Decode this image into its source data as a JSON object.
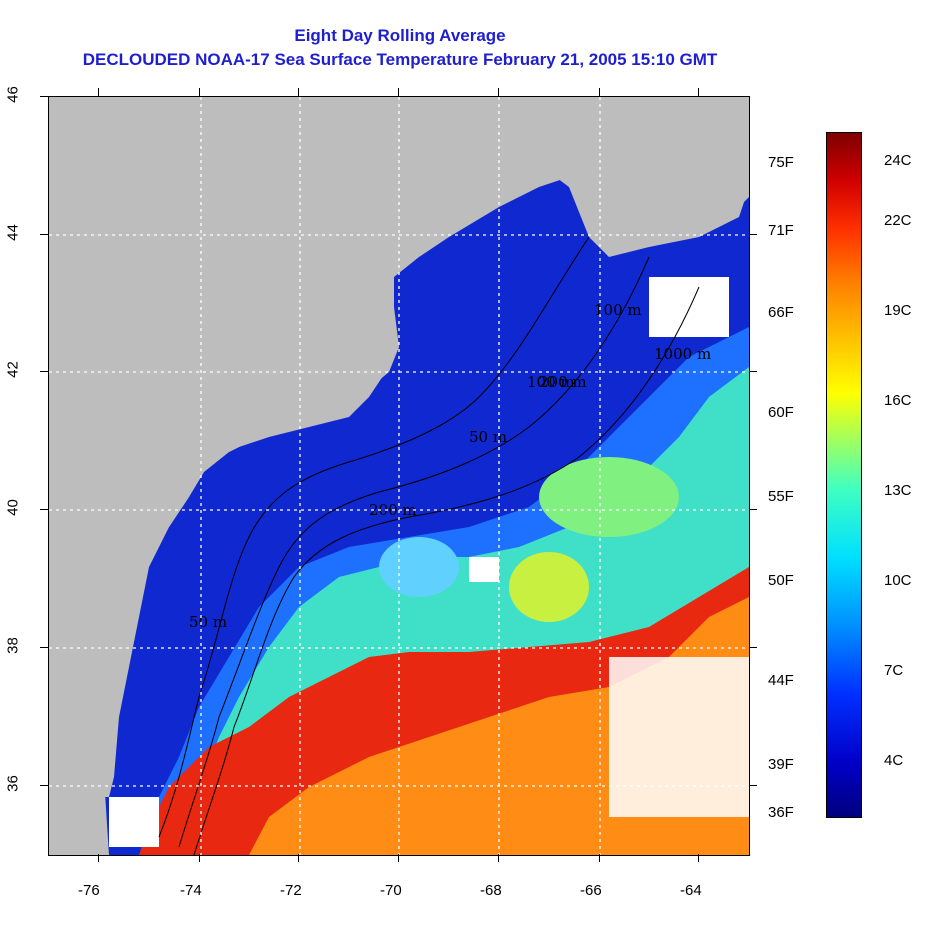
{
  "title_line1": "Eight Day Rolling Average",
  "title_line2": "DECLOUDED NOAA-17 Sea Surface Temperature February 21, 2005 15:10 GMT",
  "x_axis": {
    "ticks": [
      "-76",
      "-74",
      "-72",
      "-70",
      "-68",
      "-66",
      "-64"
    ]
  },
  "y_axis": {
    "ticks": [
      "46",
      "44",
      "42",
      "40",
      "38",
      "36"
    ]
  },
  "contour_labels": [
    "50 m",
    "100 m",
    "200 m",
    "200 m",
    "1000 m",
    "100 m",
    "50 m"
  ],
  "colorbar": {
    "celsius_labels": [
      "24C",
      "22C",
      "19C",
      "16C",
      "13C",
      "10C",
      "7C",
      "4C"
    ],
    "fahrenheit_labels": [
      "75F",
      "71F",
      "66F",
      "60F",
      "55F",
      "50F",
      "44F",
      "39F",
      "36F"
    ]
  },
  "colors": {
    "title": "#1f1fcf",
    "land": "#bdbdbd",
    "cloud": "#ffffff",
    "cold": "#0a14c8",
    "warm": "#ff8c14"
  }
}
